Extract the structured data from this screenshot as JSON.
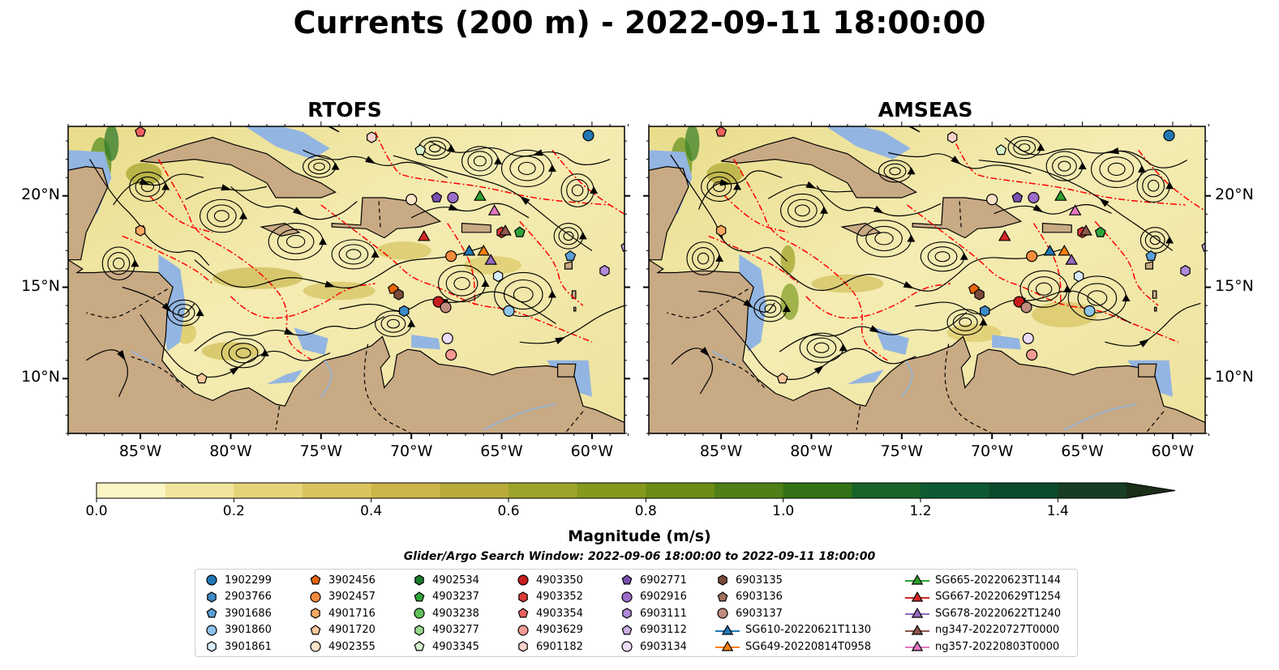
{
  "title": "Currents (200 m) - 2022-09-11 18:00:00",
  "panels": [
    {
      "title": "RTOFS"
    },
    {
      "title": "AMSEAS"
    }
  ],
  "map": {
    "lon_labels": [
      "85°W",
      "80°W",
      "75°W",
      "70°W",
      "65°W",
      "60°W"
    ],
    "lat_labels": [
      "20°N",
      "15°N",
      "10°N"
    ],
    "colors": {
      "land": "#c8aa84",
      "shallow_water": "#93b5e1",
      "eez": "#ff0000"
    }
  },
  "colorbar": {
    "title": "Magnitude (m/s)",
    "ticks": [
      "0.0",
      "0.2",
      "0.4",
      "0.6",
      "0.8",
      "1.0",
      "1.2",
      "1.4"
    ],
    "range": [
      0,
      1.6
    ],
    "colors": [
      "#fcf6c4",
      "#f1e49c",
      "#e6d47a",
      "#dac45e",
      "#ccb64a",
      "#b8ab3a",
      "#9fa42a",
      "#85991d",
      "#6c8c17",
      "#4f7f16",
      "#327116",
      "#18632a",
      "#0e5a33",
      "#0c4a2c",
      "#173d22",
      "#1b2e18"
    ]
  },
  "search_window": "Glider/Argo Search Window: 2022-09-06 18:00:00 to 2022-09-11 18:00:00",
  "legend": {
    "columns": [
      [
        {
          "label": "1902299",
          "marker": "circle",
          "color": "#1f77b4"
        },
        {
          "label": "2903766",
          "marker": "hexagon",
          "color": "#3d8bc4"
        },
        {
          "label": "3901686",
          "marker": "pentagon",
          "color": "#5aa0d8"
        },
        {
          "label": "3901860",
          "marker": "circle",
          "color": "#8ec4ea"
        },
        {
          "label": "3901861",
          "marker": "hexagon",
          "color": "#d7ebf8"
        }
      ],
      [
        {
          "label": "3902456",
          "marker": "pentagon",
          "color": "#e8650a"
        },
        {
          "label": "3902457",
          "marker": "circle",
          "color": "#f58c3c"
        },
        {
          "label": "4901716",
          "marker": "hexagon",
          "color": "#f8a860"
        },
        {
          "label": "4901720",
          "marker": "pentagon",
          "color": "#f9c79a"
        },
        {
          "label": "4902355",
          "marker": "circle",
          "color": "#fde3c8"
        }
      ],
      [
        {
          "label": "4902534",
          "marker": "hexagon",
          "color": "#1d7a2c"
        },
        {
          "label": "4903237",
          "marker": "pentagon",
          "color": "#2ea43a"
        },
        {
          "label": "4903238",
          "marker": "circle",
          "color": "#5fc15a"
        },
        {
          "label": "4903277",
          "marker": "hexagon",
          "color": "#98da8c"
        },
        {
          "label": "4903345",
          "marker": "pentagon",
          "color": "#d6f2cc"
        }
      ],
      [
        {
          "label": "4903350",
          "marker": "circle",
          "color": "#c81d1d"
        },
        {
          "label": "4903352",
          "marker": "hexagon",
          "color": "#dd3a3a"
        },
        {
          "label": "4903354",
          "marker": "pentagon",
          "color": "#ec6060"
        },
        {
          "label": "4903629",
          "marker": "circle",
          "color": "#f59a94"
        },
        {
          "label": "6901182",
          "marker": "hexagon",
          "color": "#fbd2cc"
        }
      ],
      [
        {
          "label": "6902771",
          "marker": "pentagon",
          "color": "#7a4fb0"
        },
        {
          "label": "6902916",
          "marker": "circle",
          "color": "#9b6cc8"
        },
        {
          "label": "6903111",
          "marker": "hexagon",
          "color": "#b08ad8"
        },
        {
          "label": "6903112",
          "marker": "pentagon",
          "color": "#ccafe6"
        },
        {
          "label": "6903134",
          "marker": "circle",
          "color": "#ecdcf6"
        }
      ],
      [
        {
          "label": "6903135",
          "marker": "hexagon",
          "color": "#7c4a3c"
        },
        {
          "label": "6903136",
          "marker": "pentagon",
          "color": "#a1705e"
        },
        {
          "label": "6903137",
          "marker": "circle",
          "color": "#c08c7e"
        },
        {
          "label": "SG610-20220621T1130",
          "marker": "triangle-line",
          "color": "#1f77b4"
        },
        {
          "label": "SG649-20220814T0958",
          "marker": "triangle-line",
          "color": "#ff7f0e"
        }
      ],
      [
        {
          "label": "SG665-20220623T1144",
          "marker": "triangle-line",
          "color": "#2ca02c"
        },
        {
          "label": "SG667-20220629T1254",
          "marker": "triangle-line",
          "color": "#d62728"
        },
        {
          "label": "SG678-20220622T1240",
          "marker": "triangle-line",
          "color": "#9467bd"
        },
        {
          "label": "ng347-20220727T0000",
          "marker": "triangle-line",
          "color": "#8c564b"
        },
        {
          "label": "ng357-20220803T0000",
          "marker": "triangle-line",
          "color": "#e377c2"
        }
      ]
    ]
  },
  "observations": [
    {
      "id": "1902299",
      "marker": "circle",
      "color": "#1f77b4",
      "lon": -60.2,
      "lat": 23.3
    },
    {
      "id": "2903766",
      "marker": "hexagon",
      "color": "#3d8bc4",
      "lon": -70.4,
      "lat": 13.7
    },
    {
      "id": "3901686",
      "marker": "pentagon",
      "color": "#5aa0d8",
      "lon": -61.2,
      "lat": 16.7
    },
    {
      "id": "3901860",
      "marker": "circle",
      "color": "#8ec4ea",
      "lon": -64.6,
      "lat": 13.7
    },
    {
      "id": "3901861",
      "marker": "hexagon",
      "color": "#d7ebf8",
      "lon": -65.2,
      "lat": 15.6
    },
    {
      "id": "3902456",
      "marker": "pentagon",
      "color": "#e8650a",
      "lon": -71.0,
      "lat": 14.9
    },
    {
      "id": "3902457",
      "marker": "circle",
      "color": "#f58c3c",
      "lon": -67.8,
      "lat": 16.7
    },
    {
      "id": "4902355",
      "marker": "circle",
      "color": "#fde3c8",
      "lon": -70.0,
      "lat": 19.8
    },
    {
      "id": "4901716",
      "marker": "hexagon",
      "color": "#f8a860",
      "lon": -85.0,
      "lat": 18.1
    },
    {
      "id": "4901720",
      "marker": "pentagon",
      "color": "#f9c79a",
      "lon": -81.6,
      "lat": 10.0
    },
    {
      "id": "4903237",
      "marker": "pentagon",
      "color": "#2ea43a",
      "lon": -64.0,
      "lat": 18.0
    },
    {
      "id": "4903345",
      "marker": "pentagon",
      "color": "#d6f2cc",
      "lon": -69.5,
      "lat": 22.5
    },
    {
      "id": "4903350",
      "marker": "circle",
      "color": "#c81d1d",
      "lon": -68.5,
      "lat": 14.2
    },
    {
      "id": "4903352",
      "marker": "hexagon",
      "color": "#dd3a3a",
      "lon": -65.0,
      "lat": 18.0
    },
    {
      "id": "4903354",
      "marker": "pentagon",
      "color": "#ec6060",
      "lon": -85.0,
      "lat": 23.5
    },
    {
      "id": "4903629",
      "marker": "circle",
      "color": "#f59a94",
      "lon": -67.8,
      "lat": 11.3
    },
    {
      "id": "6901182",
      "marker": "hexagon",
      "color": "#fbd2cc",
      "lon": -72.2,
      "lat": 23.2
    },
    {
      "id": "6902771",
      "marker": "pentagon",
      "color": "#7a4fb0",
      "lon": -68.6,
      "lat": 19.9
    },
    {
      "id": "6902916",
      "marker": "circle",
      "color": "#9b6cc8",
      "lon": -67.7,
      "lat": 19.9
    },
    {
      "id": "6903112",
      "marker": "pentagon",
      "color": "#ccafe6",
      "lon": -58.1,
      "lat": 17.2
    },
    {
      "id": "6903111",
      "marker": "hexagon",
      "color": "#b08ad8",
      "lon": -59.3,
      "lat": 15.9
    },
    {
      "id": "6903134",
      "marker": "circle",
      "color": "#ecdcf6",
      "lon": -68.0,
      "lat": 12.2
    },
    {
      "id": "6903135",
      "marker": "hexagon",
      "color": "#7c4a3c",
      "lon": -70.7,
      "lat": 14.6
    },
    {
      "id": "6903137",
      "marker": "circle",
      "color": "#c08c7e",
      "lon": -68.1,
      "lat": 13.9
    },
    {
      "id": "SG610-20220621T1130",
      "marker": "triangle",
      "color": "#1f77b4",
      "lon": -66.8,
      "lat": 17.0
    },
    {
      "id": "SG649-20220814T0958",
      "marker": "triangle",
      "color": "#ff7f0e",
      "lon": -66.0,
      "lat": 17.0
    },
    {
      "id": "SG665-20220623T1144",
      "marker": "triangle",
      "color": "#2ca02c",
      "lon": -66.2,
      "lat": 20.0
    },
    {
      "id": "SG667-20220629T1254",
      "marker": "triangle",
      "color": "#d62728",
      "lon": -69.3,
      "lat": 17.8
    },
    {
      "id": "SG678-20220622T1240",
      "marker": "triangle",
      "color": "#9467bd",
      "lon": -65.6,
      "lat": 16.5
    },
    {
      "id": "ng347-20220727T0000",
      "marker": "triangle",
      "color": "#8c564b",
      "lon": -64.8,
      "lat": 18.1
    },
    {
      "id": "ng357-20220803T0000",
      "marker": "triangle",
      "color": "#e377c2",
      "lon": -65.4,
      "lat": 19.2
    }
  ]
}
